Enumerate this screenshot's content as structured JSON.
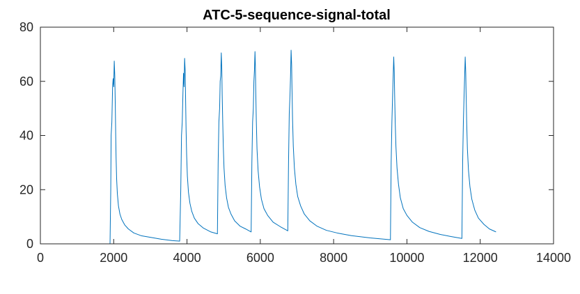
{
  "chart_data": {
    "type": "line",
    "title": "ATC-5-sequence-signal-total",
    "xlabel": "",
    "ylabel": "",
    "xlim": [
      0,
      14000
    ],
    "ylim": [
      0,
      80
    ],
    "x_ticks": [
      0,
      2000,
      4000,
      6000,
      8000,
      10000,
      12000,
      14000
    ],
    "x_tick_labels": [
      "0",
      "2000",
      "4000",
      "6000",
      "8000",
      "10000",
      "12000",
      "14000"
    ],
    "y_ticks": [
      0,
      20,
      40,
      60,
      80
    ],
    "y_tick_labels": [
      "0",
      "20",
      "40",
      "60",
      "80"
    ],
    "grid": false,
    "legend": "none",
    "series_color": "#0072BD",
    "series": [
      {
        "x": [
          0,
          1900,
          1920,
          1930,
          1950,
          1970,
          1985,
          2000,
          2015,
          2030,
          2045,
          2055,
          2065,
          2080,
          2100,
          2130,
          2170,
          2220,
          2300,
          2400,
          2550,
          2750,
          3000,
          3300,
          3600,
          3800,
          3830,
          3850,
          3870,
          3890,
          3905,
          3920,
          3935,
          3950,
          3960,
          3975,
          3990,
          4010,
          4040,
          4080,
          4130,
          4200,
          4300,
          4450,
          4650,
          4830,
          4850,
          4870,
          4890,
          4905,
          4920,
          4935,
          4950,
          4960,
          4975,
          4990,
          5010,
          5040,
          5080,
          5130,
          5200,
          5300,
          5450,
          5600,
          5750,
          5770,
          5790,
          5810,
          5825,
          5840,
          5855,
          5865,
          5875,
          5890,
          5910,
          5940,
          5980,
          6030,
          6100,
          6200,
          6350,
          6550,
          6750,
          6770,
          6790,
          6810,
          6825,
          6840,
          6855,
          6865,
          6880,
          6900,
          6930,
          6970,
          7020,
          7100,
          7200,
          7350,
          7550,
          7800,
          8100,
          8500,
          9000,
          9550,
          9570,
          9590,
          9610,
          9625,
          9640,
          9655,
          9665,
          9680,
          9700,
          9730,
          9770,
          9820,
          9900,
          10000,
          10150,
          10350,
          10600,
          10900,
          11200,
          11500,
          11520,
          11540,
          11560,
          11575,
          11590,
          11605,
          11615,
          11630,
          11650,
          11680,
          11720,
          11770,
          11850,
          11950,
          12100,
          12250,
          12430
        ],
        "y": [
          0,
          0,
          20,
          40,
          45,
          58,
          61,
          58,
          67.5,
          62,
          50,
          40,
          32,
          24,
          18.5,
          14,
          11,
          9,
          7,
          5.5,
          4,
          3,
          2.4,
          1.7,
          1.2,
          1.0,
          20,
          40,
          45,
          56,
          63,
          58,
          68.5,
          64,
          55,
          42,
          33,
          25,
          19,
          15,
          12,
          9.5,
          7.5,
          5.8,
          4.4,
          3.7,
          30,
          45,
          50,
          60,
          62,
          70.5,
          64,
          55,
          45,
          36,
          28,
          21.5,
          17,
          13.5,
          11,
          8.5,
          6.5,
          5.5,
          4.4,
          30,
          45,
          50,
          60,
          64,
          71,
          66,
          57,
          46,
          35,
          27,
          21,
          16.5,
          13,
          10.5,
          8,
          6.3,
          4.8,
          30,
          48,
          55,
          62,
          71.5,
          66,
          57,
          46,
          36,
          28,
          22,
          17.5,
          14,
          11,
          8.5,
          6.5,
          5,
          4,
          3,
          2.2,
          1.5,
          30,
          45,
          55,
          62,
          69,
          63,
          55,
          45,
          36,
          28,
          22,
          17,
          13,
          10.5,
          8,
          6,
          4.6,
          3.5,
          2.7,
          2.0,
          30,
          45,
          55,
          62,
          69,
          63,
          55,
          45,
          35,
          27,
          21,
          16.5,
          12.5,
          9.5,
          7.2,
          5.5,
          4.4
        ]
      }
    ]
  }
}
